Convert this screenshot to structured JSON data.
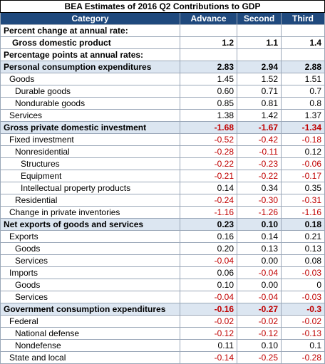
{
  "title": "BEA Estimates of 2016 Q2 Contributions to GDP",
  "columns": [
    "Category",
    "Advance",
    "Second",
    "Third"
  ],
  "rows": [
    {
      "label": "Percent change at annual rate:"
    },
    {
      "label": "Gross domestic product",
      "values": [
        "1.2",
        "1.1",
        "1.4"
      ]
    },
    {
      "label": "Percentage points at annual rates:"
    },
    {
      "label": "Personal consumption expenditures",
      "values": [
        "2.83",
        "2.94",
        "2.88"
      ]
    },
    {
      "label": "Goods",
      "values": [
        "1.45",
        "1.52",
        "1.51"
      ]
    },
    {
      "label": "Durable goods",
      "values": [
        "0.60",
        "0.71",
        "0.7"
      ]
    },
    {
      "label": "Nondurable goods",
      "values": [
        "0.85",
        "0.81",
        "0.8"
      ]
    },
    {
      "label": "Services",
      "values": [
        "1.38",
        "1.42",
        "1.37"
      ]
    },
    {
      "label": "Gross private domestic investment",
      "values": [
        "-1.68",
        "-1.67",
        "-1.34"
      ]
    },
    {
      "label": "Fixed investment",
      "values": [
        "-0.52",
        "-0.42",
        "-0.18"
      ]
    },
    {
      "label": "Nonresidential",
      "values": [
        "-0.28",
        "-0.11",
        "0.12"
      ]
    },
    {
      "label": "Structures",
      "values": [
        "-0.22",
        "-0.23",
        "-0.06"
      ]
    },
    {
      "label": "Equipment",
      "values": [
        "-0.21",
        "-0.22",
        "-0.17"
      ]
    },
    {
      "label": "Intellectual property products",
      "values": [
        "0.14",
        "0.34",
        "0.35"
      ]
    },
    {
      "label": "Residential",
      "values": [
        "-0.24",
        "-0.30",
        "-0.31"
      ]
    },
    {
      "label": "Change in private inventories",
      "values": [
        "-1.16",
        "-1.26",
        "-1.16"
      ]
    },
    {
      "label": "Net exports of goods and services",
      "values": [
        "0.23",
        "0.10",
        "0.18"
      ]
    },
    {
      "label": "Exports",
      "values": [
        "0.16",
        "0.14",
        "0.21"
      ]
    },
    {
      "label": "Goods",
      "values": [
        "0.20",
        "0.13",
        "0.13"
      ]
    },
    {
      "label": "Services",
      "values": [
        "-0.04",
        "0.00",
        "0.08"
      ]
    },
    {
      "label": "Imports",
      "values": [
        "0.06",
        "-0.04",
        "-0.03"
      ]
    },
    {
      "label": "Goods",
      "values": [
        "0.10",
        "0.00",
        "0"
      ]
    },
    {
      "label": "Services",
      "values": [
        "-0.04",
        "-0.04",
        "-0.03"
      ]
    },
    {
      "label": "Government consumption expenditures",
      "values": [
        "-0.16",
        "-0.27",
        "-0.3"
      ]
    },
    {
      "label": "Federal",
      "values": [
        "-0.02",
        "-0.02",
        "-0.02"
      ]
    },
    {
      "label": "National defense",
      "values": [
        "-0.12",
        "-0.12",
        "-0.13"
      ]
    },
    {
      "label": "Nondefense",
      "values": [
        "0.11",
        "0.10",
        "0.1"
      ]
    },
    {
      "label": "State and local",
      "values": [
        "-0.14",
        "-0.25",
        "-0.28"
      ]
    }
  ]
}
